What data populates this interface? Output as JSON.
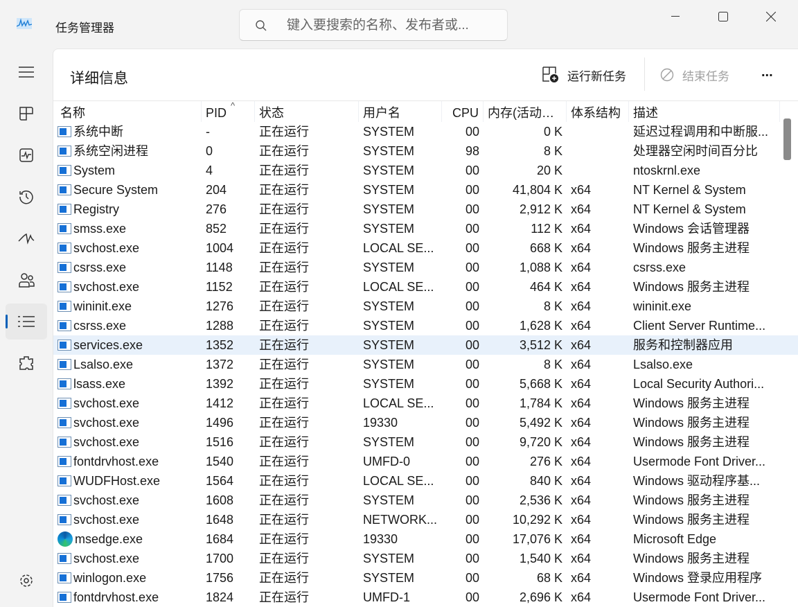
{
  "app": {
    "title": "任务管理器",
    "search_placeholder": "键入要搜索的名称、发布者或..."
  },
  "window_controls": [
    "minimize",
    "maximize",
    "close"
  ],
  "sidebar": {
    "items": [
      "hamburger-icon",
      "processes-icon",
      "performance-icon",
      "app-history-icon",
      "startup-icon",
      "users-icon",
      "details-icon",
      "services-icon"
    ],
    "selected": "details-icon",
    "settings": "settings-icon"
  },
  "page": {
    "title": "详细信息",
    "run_new_task": "运行新任务",
    "end_task": "结束任务",
    "more": "..."
  },
  "table": {
    "columns": [
      "名称",
      "PID",
      "状态",
      "用户名",
      "CPU",
      "内存(活动的...",
      "体系结构",
      "描述"
    ],
    "sort_column": "PID",
    "sort_indicator": "^",
    "selected_row": "services.exe",
    "rows": [
      [
        "系统中断",
        "-",
        "正在运行",
        "SYSTEM",
        "00",
        "0 K",
        "",
        "延迟过程调用和中断服..."
      ],
      [
        "系统空闲进程",
        "0",
        "正在运行",
        "SYSTEM",
        "98",
        "8 K",
        "",
        "处理器空闲时间百分比"
      ],
      [
        "System",
        "4",
        "正在运行",
        "SYSTEM",
        "00",
        "20 K",
        "",
        "ntoskrnl.exe"
      ],
      [
        "Secure System",
        "204",
        "正在运行",
        "SYSTEM",
        "00",
        "41,804 K",
        "x64",
        "NT Kernel & System"
      ],
      [
        "Registry",
        "276",
        "正在运行",
        "SYSTEM",
        "00",
        "2,912 K",
        "x64",
        "NT Kernel & System"
      ],
      [
        "smss.exe",
        "852",
        "正在运行",
        "SYSTEM",
        "00",
        "112 K",
        "x64",
        "Windows 会话管理器"
      ],
      [
        "svchost.exe",
        "1004",
        "正在运行",
        "LOCAL SE...",
        "00",
        "668 K",
        "x64",
        "Windows 服务主进程"
      ],
      [
        "csrss.exe",
        "1148",
        "正在运行",
        "SYSTEM",
        "00",
        "1,088 K",
        "x64",
        "csrss.exe"
      ],
      [
        "svchost.exe",
        "1152",
        "正在运行",
        "LOCAL SE...",
        "00",
        "464 K",
        "x64",
        "Windows 服务主进程"
      ],
      [
        "wininit.exe",
        "1276",
        "正在运行",
        "SYSTEM",
        "00",
        "8 K",
        "x64",
        "wininit.exe"
      ],
      [
        "csrss.exe",
        "1288",
        "正在运行",
        "SYSTEM",
        "00",
        "1,628 K",
        "x64",
        "Client Server Runtime..."
      ],
      [
        "services.exe",
        "1352",
        "正在运行",
        "SYSTEM",
        "00",
        "3,512 K",
        "x64",
        "服务和控制器应用"
      ],
      [
        "Lsalso.exe",
        "1372",
        "正在运行",
        "SYSTEM",
        "00",
        "8 K",
        "x64",
        "Lsalso.exe"
      ],
      [
        "lsass.exe",
        "1392",
        "正在运行",
        "SYSTEM",
        "00",
        "5,668 K",
        "x64",
        "Local Security Authori..."
      ],
      [
        "svchost.exe",
        "1412",
        "正在运行",
        "LOCAL SE...",
        "00",
        "1,784 K",
        "x64",
        "Windows 服务主进程"
      ],
      [
        "svchost.exe",
        "1496",
        "正在运行",
        "19330",
        "00",
        "5,492 K",
        "x64",
        "Windows 服务主进程"
      ],
      [
        "svchost.exe",
        "1516",
        "正在运行",
        "SYSTEM",
        "00",
        "9,720 K",
        "x64",
        "Windows 服务主进程"
      ],
      [
        "fontdrvhost.exe",
        "1540",
        "正在运行",
        "UMFD-0",
        "00",
        "276 K",
        "x64",
        "Usermode Font Driver..."
      ],
      [
        "WUDFHost.exe",
        "1564",
        "正在运行",
        "LOCAL SE...",
        "00",
        "840 K",
        "x64",
        "Windows 驱动程序基..."
      ],
      [
        "svchost.exe",
        "1608",
        "正在运行",
        "SYSTEM",
        "00",
        "2,536 K",
        "x64",
        "Windows 服务主进程"
      ],
      [
        "svchost.exe",
        "1648",
        "正在运行",
        "NETWORK...",
        "00",
        "10,292 K",
        "x64",
        "Windows 服务主进程"
      ],
      [
        "msedge.exe",
        "1684",
        "正在运行",
        "19330",
        "00",
        "17,076 K",
        "x64",
        "Microsoft Edge"
      ],
      [
        "svchost.exe",
        "1700",
        "正在运行",
        "SYSTEM",
        "00",
        "1,540 K",
        "x64",
        "Windows 服务主进程"
      ],
      [
        "winlogon.exe",
        "1756",
        "正在运行",
        "SYSTEM",
        "00",
        "68 K",
        "x64",
        "Windows 登录应用程序"
      ],
      [
        "fontdrvhost.exe",
        "1824",
        "正在运行",
        "UMFD-1",
        "00",
        "2,696 K",
        "x64",
        "Usermode Font Driver..."
      ]
    ]
  },
  "colors": {
    "accent": "#005fb8",
    "selected_row": "#e8f1fb"
  }
}
